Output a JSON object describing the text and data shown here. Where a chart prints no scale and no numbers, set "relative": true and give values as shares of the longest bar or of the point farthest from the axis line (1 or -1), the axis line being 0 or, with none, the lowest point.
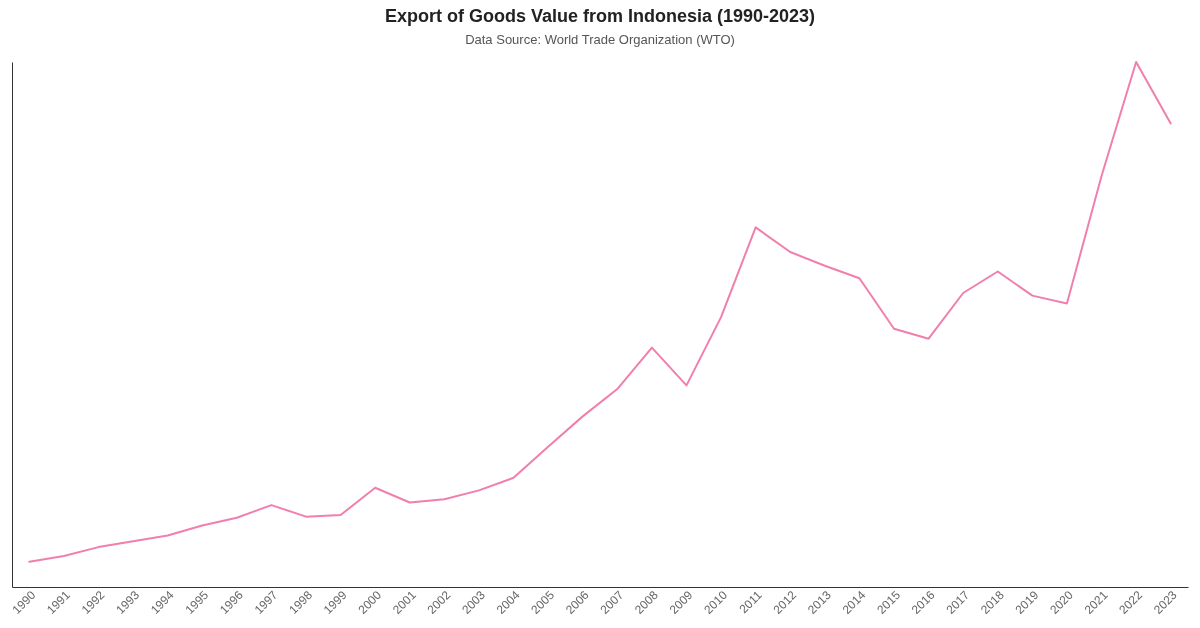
{
  "chart_data": {
    "type": "line",
    "title": "Export of Goods Value from Indonesia (1990-2023)",
    "subtitle": "Data Source: World Trade Organization (WTO)",
    "categories": [
      "1990",
      "1991",
      "1992",
      "1993",
      "1994",
      "1995",
      "1996",
      "1997",
      "1998",
      "1999",
      "2000",
      "2001",
      "2002",
      "2003",
      "2004",
      "2005",
      "2006",
      "2007",
      "2008",
      "2009",
      "2010",
      "2011",
      "2012",
      "2013",
      "2014",
      "2015",
      "2016",
      "2017",
      "2018",
      "2019",
      "2020",
      "2021",
      "2022",
      "2023"
    ],
    "relative": true,
    "series": [
      {
        "color": "#f07fae",
        "values": [
          0.048,
          0.059,
          0.076,
          0.087,
          0.098,
          0.117,
          0.132,
          0.156,
          0.134,
          0.137,
          0.189,
          0.161,
          0.167,
          0.184,
          0.208,
          0.267,
          0.325,
          0.377,
          0.456,
          0.384,
          0.514,
          0.685,
          0.638,
          0.612,
          0.588,
          0.492,
          0.473,
          0.56,
          0.601,
          0.555,
          0.54,
          0.783,
          1,
          0.883
        ]
      }
    ],
    "grid": false,
    "marker": "none"
  }
}
